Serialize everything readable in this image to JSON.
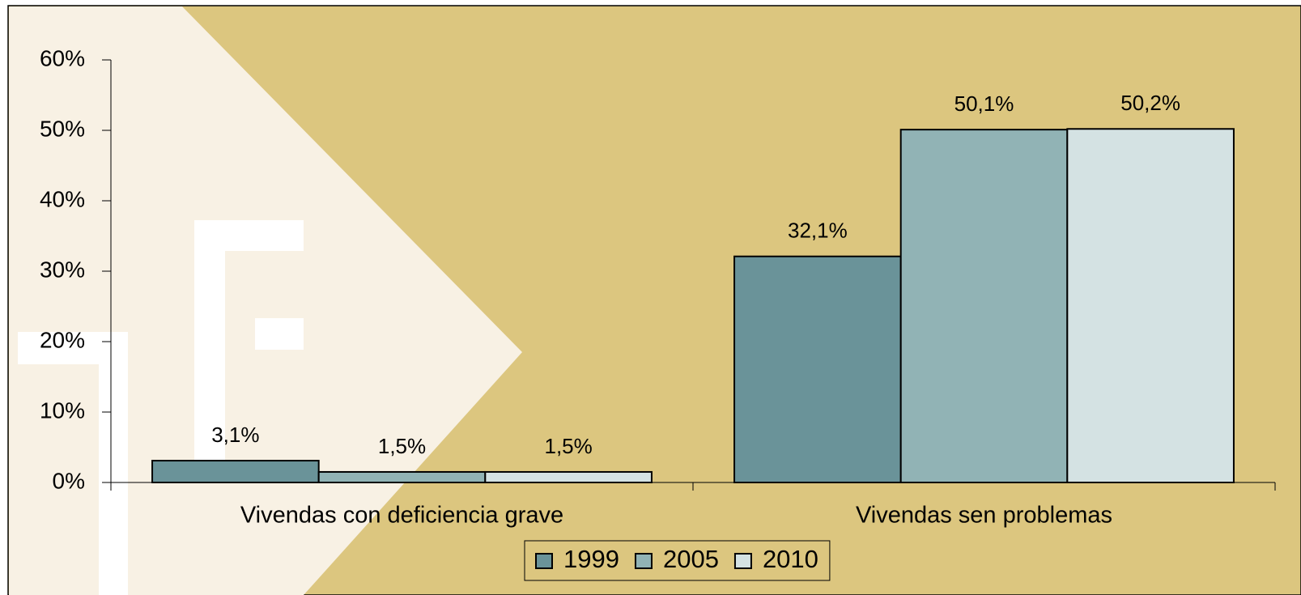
{
  "chart_data": {
    "type": "bar",
    "categories": [
      "Vivendas con deficiencia grave",
      "Vivendas sen problemas"
    ],
    "series": [
      {
        "name": "1999",
        "color": "#6a9399",
        "values": [
          3.1,
          32.1
        ],
        "value_labels": [
          "3,1%",
          "32,1%"
        ]
      },
      {
        "name": "2005",
        "color": "#91b3b5",
        "values": [
          1.5,
          50.1
        ],
        "value_labels": [
          "1,5%",
          "50,1%"
        ]
      },
      {
        "name": "2010",
        "color": "#d4e2e3",
        "values": [
          1.5,
          50.2
        ],
        "value_labels": [
          "1,5%",
          "50,2%"
        ]
      }
    ],
    "ylim": [
      0,
      60
    ],
    "yticks": [
      {
        "value": 0,
        "label": "0%"
      },
      {
        "value": 10,
        "label": "10%"
      },
      {
        "value": 20,
        "label": "20%"
      },
      {
        "value": 30,
        "label": "30%"
      },
      {
        "value": 40,
        "label": "40%"
      },
      {
        "value": 50,
        "label": "50%"
      },
      {
        "value": 60,
        "label": "60%"
      }
    ],
    "legend": "bottom",
    "grid": false
  }
}
